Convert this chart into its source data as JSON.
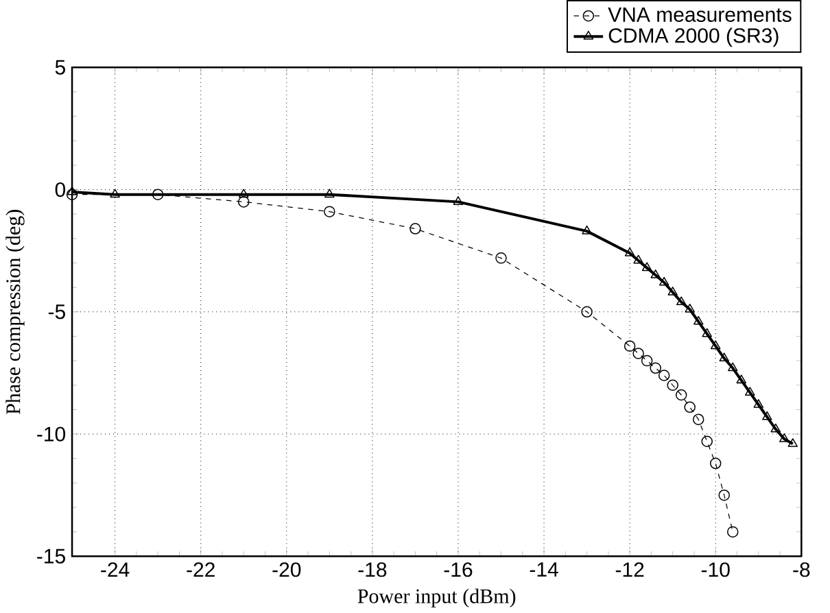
{
  "chart_data": {
    "type": "line",
    "xlabel": "Power input (dBm)",
    "ylabel": "Phase compression (deg)",
    "xlim": [
      -25,
      -8
    ],
    "ylim": [
      -15,
      5
    ],
    "xticks": [
      -24,
      -22,
      -20,
      -18,
      -16,
      -14,
      -12,
      -10,
      -8
    ],
    "yticks": [
      -15,
      -10,
      -5,
      0,
      5
    ],
    "grid": true,
    "legend": "top right",
    "series": [
      {
        "name": "VNA measurements",
        "color": "#000000",
        "marker": "circle",
        "line_style": "dashed",
        "x": [
          -25,
          -23,
          -21,
          -19,
          -17,
          -15,
          -13,
          -12,
          -11.8,
          -11.6,
          -11.4,
          -11.2,
          -11,
          -10.8,
          -10.6,
          -10.4,
          -10.2,
          -10,
          -9.8,
          -9.6
        ],
        "values": [
          -0.2,
          -0.2,
          -0.5,
          -0.9,
          -1.6,
          -2.8,
          -5,
          -6.4,
          -6.7,
          -7,
          -7.3,
          -7.6,
          -8,
          -8.4,
          -8.9,
          -9.4,
          -10.3,
          -11.2,
          -12.5,
          -14
        ]
      },
      {
        "name": "CDMA 2000 (SR3)",
        "color": "#000000",
        "marker": "triangle",
        "line_style": "solid",
        "x": [
          -25,
          -24,
          -21,
          -19,
          -16,
          -13,
          -12,
          -11.8,
          -11.6,
          -11.4,
          -11.2,
          -11,
          -10.8,
          -10.6,
          -10.4,
          -10.2,
          -10,
          -9.8,
          -9.6,
          -9.4,
          -9.2,
          -9,
          -8.8,
          -8.6,
          -8.4,
          -8.2
        ],
        "values": [
          -0.1,
          -0.2,
          -0.2,
          -0.2,
          -0.5,
          -1.7,
          -2.6,
          -2.9,
          -3.2,
          -3.5,
          -3.8,
          -4.2,
          -4.6,
          -4.9,
          -5.4,
          -5.9,
          -6.4,
          -6.9,
          -7.3,
          -7.8,
          -8.3,
          -8.8,
          -9.3,
          -9.8,
          -10.2,
          -10.4
        ]
      }
    ]
  }
}
